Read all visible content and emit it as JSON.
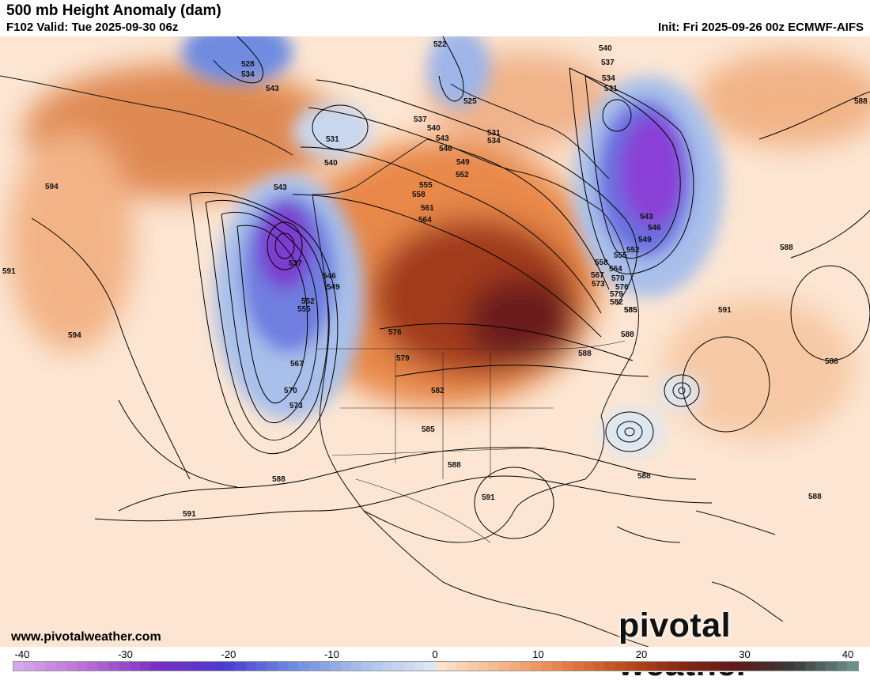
{
  "header": {
    "title": "500 mb Height Anomaly (dam)",
    "valid": "F102 Valid: Tue 2025-09-30 06z",
    "init": "Init: Fri 2025-09-26 00z ECMWF-AIFS"
  },
  "footer": {
    "website": "www.pivotalweather.com",
    "brand": "pivotal weather"
  },
  "colorbar": {
    "ticks": [
      "-40",
      "-30",
      "-20",
      "-10",
      "0",
      "10",
      "20",
      "30",
      "40"
    ],
    "min": -40,
    "max": 40,
    "negative_colors": [
      "#d6a8e8",
      "#b86dd6",
      "#7a2fc0",
      "#4a3bd0",
      "#6f8be0",
      "#a9c0ea",
      "#dce6f4"
    ],
    "positive_colors": [
      "#fbe2cc",
      "#f5b88a",
      "#e8844a",
      "#c0531f",
      "#8c2a14",
      "#5e1a1a",
      "#3a3a3a",
      "#6a8f8a"
    ]
  },
  "contour_labels": [
    "528",
    "534",
    "543",
    "531",
    "540",
    "543",
    "537",
    "546",
    "549",
    "552",
    "555",
    "567",
    "570",
    "573",
    "588",
    "591",
    "594",
    "594",
    "591",
    "522",
    "525",
    "531",
    "534",
    "537",
    "540",
    "543",
    "546",
    "549",
    "552",
    "555",
    "558",
    "561",
    "564",
    "576",
    "579",
    "582",
    "585",
    "588",
    "585",
    "588",
    "540",
    "537",
    "534",
    "531",
    "543",
    "546",
    "549",
    "552",
    "555",
    "558",
    "564",
    "567",
    "570",
    "573",
    "576",
    "579",
    "582",
    "585",
    "588",
    "588",
    "591",
    "588",
    "588",
    "588",
    "588",
    "591"
  ]
}
